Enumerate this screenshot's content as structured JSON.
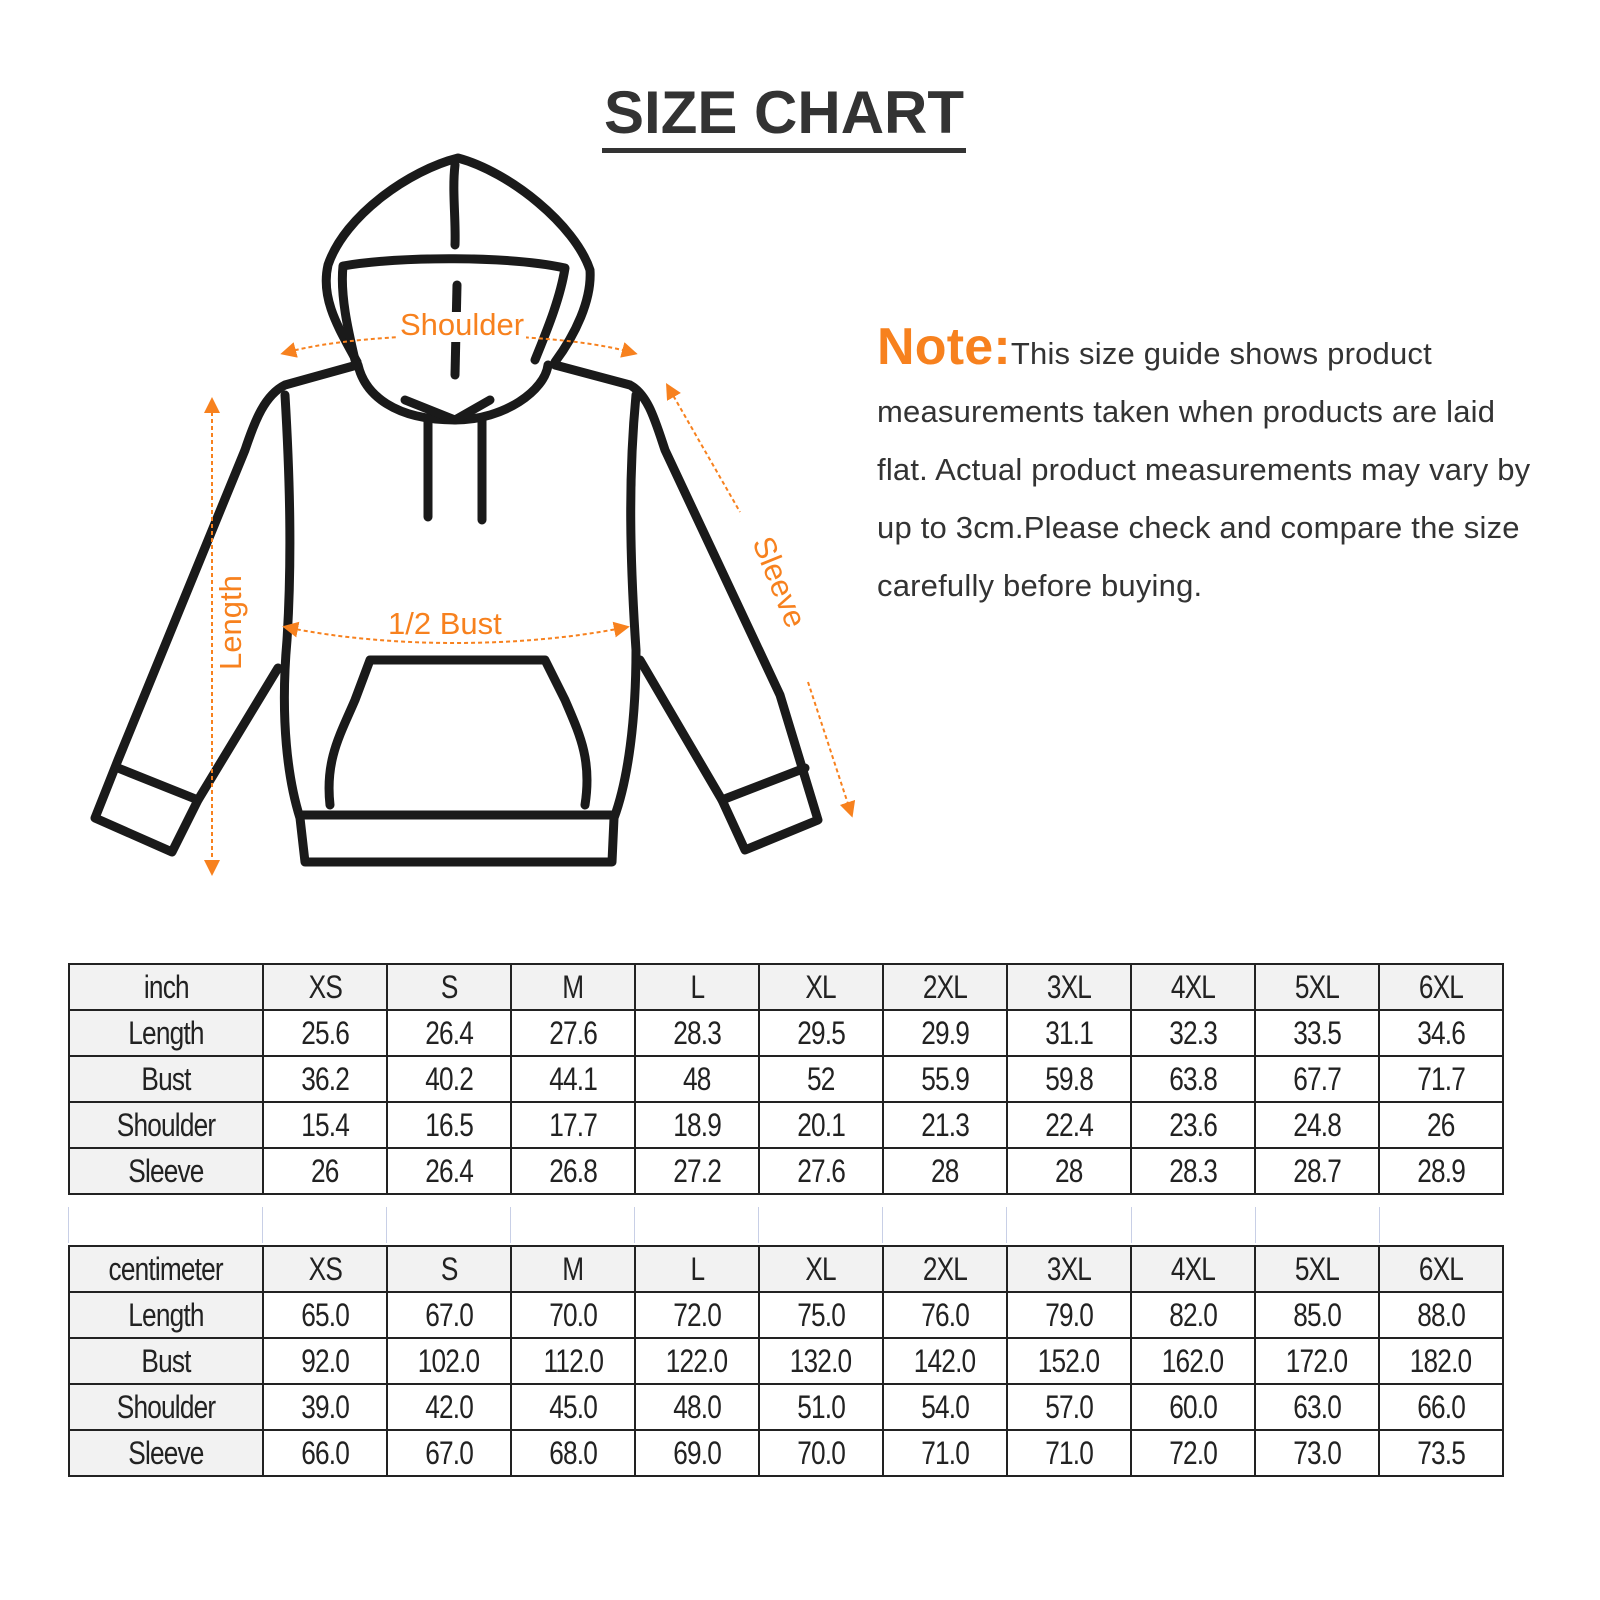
{
  "title": "SIZE CHART",
  "note": {
    "label": "Note:",
    "text": "This size guide shows product measurements taken when products are laid flat. Actual product measurements may vary by up to 3cm.Please check and compare the size carefully before buying."
  },
  "diagram": {
    "labels": {
      "shoulder": "Shoulder",
      "bust": "1/2 Bust",
      "length": "Length",
      "sleeve": "Sleeve"
    },
    "accent_color": "#f7811e"
  },
  "tables": [
    {
      "unit": "inch",
      "sizes": [
        "XS",
        "S",
        "M",
        "L",
        "XL",
        "2XL",
        "3XL",
        "4XL",
        "5XL",
        "6XL"
      ],
      "rows": [
        {
          "label": "Length",
          "values": [
            "25.6",
            "26.4",
            "27.6",
            "28.3",
            "29.5",
            "29.9",
            "31.1",
            "32.3",
            "33.5",
            "34.6"
          ]
        },
        {
          "label": "Bust",
          "values": [
            "36.2",
            "40.2",
            "44.1",
            "48",
            "52",
            "55.9",
            "59.8",
            "63.8",
            "67.7",
            "71.7"
          ]
        },
        {
          "label": "Shoulder",
          "values": [
            "15.4",
            "16.5",
            "17.7",
            "18.9",
            "20.1",
            "21.3",
            "22.4",
            "23.6",
            "24.8",
            "26"
          ]
        },
        {
          "label": "Sleeve",
          "values": [
            "26",
            "26.4",
            "26.8",
            "27.2",
            "27.6",
            "28",
            "28",
            "28.3",
            "28.7",
            "28.9"
          ]
        }
      ]
    },
    {
      "unit": "centimeter",
      "sizes": [
        "XS",
        "S",
        "M",
        "L",
        "XL",
        "2XL",
        "3XL",
        "4XL",
        "5XL",
        "6XL"
      ],
      "rows": [
        {
          "label": "Length",
          "values": [
            "65.0",
            "67.0",
            "70.0",
            "72.0",
            "75.0",
            "76.0",
            "79.0",
            "82.0",
            "85.0",
            "88.0"
          ]
        },
        {
          "label": "Bust",
          "values": [
            "92.0",
            "102.0",
            "112.0",
            "122.0",
            "132.0",
            "142.0",
            "152.0",
            "162.0",
            "172.0",
            "182.0"
          ]
        },
        {
          "label": "Shoulder",
          "values": [
            "39.0",
            "42.0",
            "45.0",
            "48.0",
            "51.0",
            "54.0",
            "57.0",
            "60.0",
            "63.0",
            "66.0"
          ]
        },
        {
          "label": "Sleeve",
          "values": [
            "66.0",
            "67.0",
            "68.0",
            "69.0",
            "70.0",
            "71.0",
            "71.0",
            "72.0",
            "73.0",
            "73.5"
          ]
        }
      ]
    }
  ]
}
